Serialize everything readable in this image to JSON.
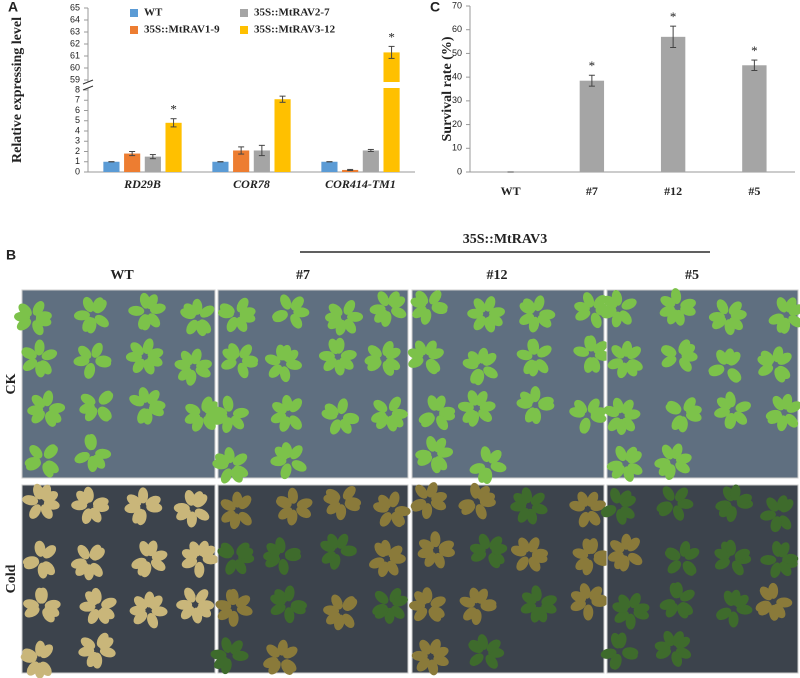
{
  "chart_data": [
    {
      "type": "bar",
      "panel_label": "A",
      "ylabel": "Relative expressing level",
      "categories": [
        "RD29B",
        "COR78",
        "COR414-TM1"
      ],
      "series": [
        {
          "name": "WT",
          "color": "#5b9bd5",
          "values": [
            1,
            1,
            1
          ],
          "errors": [
            0,
            0,
            0
          ]
        },
        {
          "name": "35S::MtRAV1-9",
          "color": "#ed7d31",
          "values": [
            1.8,
            2.1,
            0.2
          ],
          "errors": [
            0.2,
            0.35,
            0.05
          ]
        },
        {
          "name": "35S::MtRAV2-7",
          "color": "#a5a5a5",
          "values": [
            1.5,
            2.1,
            2.1
          ],
          "errors": [
            0.2,
            0.5,
            0.1
          ]
        },
        {
          "name": "35S::MtRAV3-12",
          "color": "#ffc000",
          "values": [
            4.8,
            7.1,
            61.3
          ],
          "errors": [
            0.4,
            0.3,
            0.5
          ],
          "significance": [
            "*",
            "*",
            "*"
          ]
        }
      ],
      "ylim": [
        0,
        65
      ],
      "ybreak": [
        8,
        59
      ],
      "yticks": [
        0,
        1,
        2,
        3,
        4,
        5,
        6,
        7,
        8,
        59,
        60,
        61,
        62,
        63,
        64,
        65
      ]
    },
    {
      "type": "bar",
      "panel_label": "C",
      "ylabel": "Survival rate (%)",
      "categories": [
        "WT",
        "#7",
        "#12",
        "#5"
      ],
      "values": [
        0,
        38.5,
        57,
        45
      ],
      "errors": [
        0,
        2.3,
        4.5,
        2.2
      ],
      "significance": [
        null,
        "*",
        "*",
        "*"
      ],
      "color": "#a5a5a5",
      "ylim": [
        0,
        70
      ],
      "yticks": [
        0,
        10,
        20,
        30,
        40,
        50,
        60,
        70
      ]
    }
  ],
  "photo_panel": {
    "panel_label": "B",
    "transgenic_label": "35S::MtRAV3",
    "columns": [
      "WT",
      "#7",
      "#12",
      "#5"
    ],
    "rows": [
      "CK",
      "Cold"
    ]
  }
}
